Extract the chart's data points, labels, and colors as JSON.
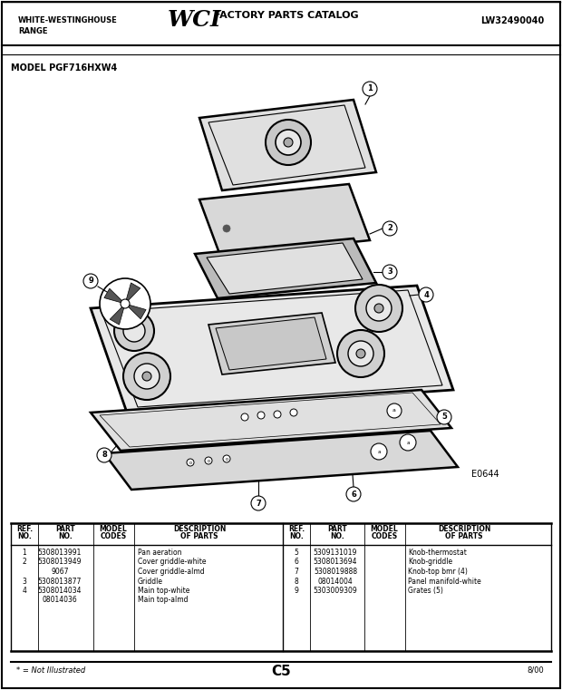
{
  "title_brand_line1": "WHITE-WESTINGHOUSE",
  "title_brand_line2": "RANGE",
  "title_center": "FACTORY PARTS CATALOG",
  "title_right": "LW32490040",
  "model_label": "MODEL PGF716HXW4",
  "diagram_code": "E0644",
  "page_label": "C5",
  "page_date": "8/00",
  "footnote": "* = Not Illustrated",
  "parts_left": [
    [
      "1",
      "5308013991",
      "",
      "Pan aeration"
    ],
    [
      "2",
      "5308013949",
      "",
      "Cover griddle-white"
    ],
    [
      "",
      "9067",
      "",
      "Cover griddle-almd"
    ],
    [
      "3",
      "5308013877",
      "",
      "Griddle"
    ],
    [
      "4",
      "5308014034",
      "",
      "Main top-white"
    ],
    [
      "",
      "08014036",
      "",
      "Main top-almd"
    ]
  ],
  "parts_right": [
    [
      "5",
      "5309131019",
      "",
      "Knob-thermostat"
    ],
    [
      "6",
      "5308013694",
      "",
      "Knob-griddle"
    ],
    [
      "7",
      "5308019888",
      "",
      "Knob-top bmr (4)"
    ],
    [
      "8",
      "08014004",
      "",
      "Panel manifold-white"
    ],
    [
      "9",
      "5303009309",
      "",
      "Grates (5)"
    ]
  ]
}
